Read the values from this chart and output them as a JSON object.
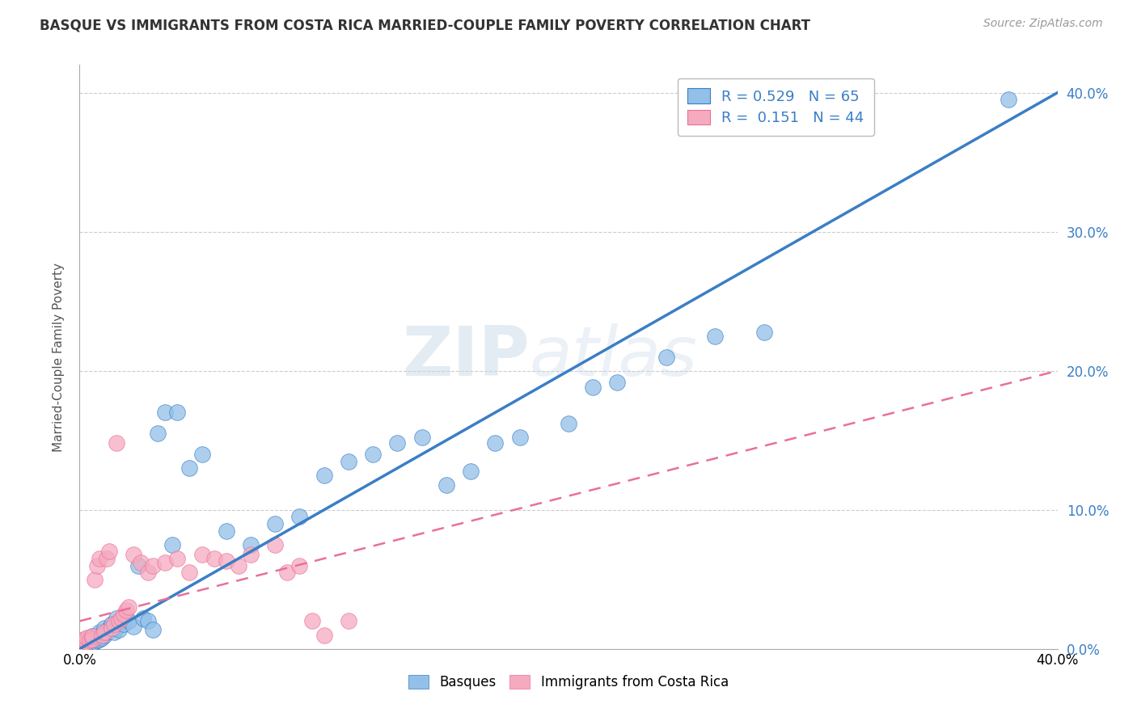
{
  "title": "BASQUE VS IMMIGRANTS FROM COSTA RICA MARRIED-COUPLE FAMILY POVERTY CORRELATION CHART",
  "source_text": "Source: ZipAtlas.com",
  "ylabel": "Married-Couple Family Poverty",
  "xmin": 0.0,
  "xmax": 0.4,
  "ymin": 0.0,
  "ymax": 0.42,
  "ytick_positions": [
    0.0,
    0.1,
    0.2,
    0.3,
    0.4
  ],
  "right_ytick_labels": [
    "0.0%",
    "10.0%",
    "20.0%",
    "30.0%",
    "40.0%"
  ],
  "watermark_zip": "ZIP",
  "watermark_atlas": "atlas",
  "legend_line1": "R = 0.529   N = 65",
  "legend_line2": "R =  0.151   N = 44",
  "color_blue": "#92C0E8",
  "color_pink": "#F5AABF",
  "line_blue": "#3A7EC6",
  "line_pink": "#E8709A",
  "background_color": "#FFFFFF",
  "grid_color": "#CCCCCC",
  "title_color": "#333333",
  "blue_line_x0": 0.0,
  "blue_line_y0": 0.0,
  "blue_line_x1": 0.4,
  "blue_line_y1": 0.4,
  "pink_line_x0": 0.0,
  "pink_line_y0": 0.02,
  "pink_line_x1": 0.4,
  "pink_line_y1": 0.2,
  "basque_x": [
    0.0,
    0.0,
    0.0,
    0.001,
    0.001,
    0.002,
    0.002,
    0.003,
    0.003,
    0.003,
    0.004,
    0.004,
    0.004,
    0.005,
    0.005,
    0.005,
    0.006,
    0.006,
    0.007,
    0.007,
    0.008,
    0.008,
    0.009,
    0.01,
    0.01,
    0.011,
    0.012,
    0.013,
    0.014,
    0.015,
    0.015,
    0.016,
    0.018,
    0.02,
    0.022,
    0.024,
    0.026,
    0.028,
    0.03,
    0.032,
    0.035,
    0.038,
    0.04,
    0.045,
    0.05,
    0.06,
    0.07,
    0.08,
    0.09,
    0.1,
    0.11,
    0.12,
    0.13,
    0.14,
    0.15,
    0.16,
    0.17,
    0.18,
    0.2,
    0.21,
    0.22,
    0.24,
    0.26,
    0.28,
    0.38
  ],
  "basque_y": [
    0.0,
    0.002,
    0.004,
    0.001,
    0.003,
    0.002,
    0.005,
    0.003,
    0.004,
    0.006,
    0.003,
    0.005,
    0.008,
    0.004,
    0.006,
    0.009,
    0.005,
    0.007,
    0.006,
    0.01,
    0.007,
    0.012,
    0.008,
    0.01,
    0.015,
    0.012,
    0.015,
    0.018,
    0.012,
    0.015,
    0.022,
    0.014,
    0.018,
    0.02,
    0.016,
    0.06,
    0.022,
    0.02,
    0.014,
    0.155,
    0.17,
    0.075,
    0.17,
    0.13,
    0.14,
    0.085,
    0.075,
    0.09,
    0.095,
    0.125,
    0.135,
    0.14,
    0.148,
    0.152,
    0.118,
    0.128,
    0.148,
    0.152,
    0.162,
    0.188,
    0.192,
    0.21,
    0.225,
    0.228,
    0.395
  ],
  "cr_x": [
    0.0,
    0.0,
    0.001,
    0.001,
    0.002,
    0.002,
    0.003,
    0.003,
    0.004,
    0.005,
    0.005,
    0.006,
    0.007,
    0.008,
    0.009,
    0.01,
    0.011,
    0.012,
    0.013,
    0.014,
    0.015,
    0.016,
    0.017,
    0.018,
    0.019,
    0.02,
    0.022,
    0.025,
    0.028,
    0.03,
    0.035,
    0.04,
    0.045,
    0.05,
    0.055,
    0.06,
    0.065,
    0.07,
    0.08,
    0.085,
    0.09,
    0.095,
    0.1,
    0.11
  ],
  "cr_y": [
    0.002,
    0.005,
    0.003,
    0.006,
    0.004,
    0.007,
    0.005,
    0.008,
    0.006,
    0.007,
    0.009,
    0.05,
    0.06,
    0.065,
    0.01,
    0.012,
    0.065,
    0.07,
    0.015,
    0.018,
    0.148,
    0.02,
    0.022,
    0.025,
    0.028,
    0.03,
    0.068,
    0.062,
    0.055,
    0.06,
    0.062,
    0.065,
    0.055,
    0.068,
    0.065,
    0.063,
    0.06,
    0.068,
    0.075,
    0.055,
    0.06,
    0.02,
    0.01,
    0.02
  ]
}
